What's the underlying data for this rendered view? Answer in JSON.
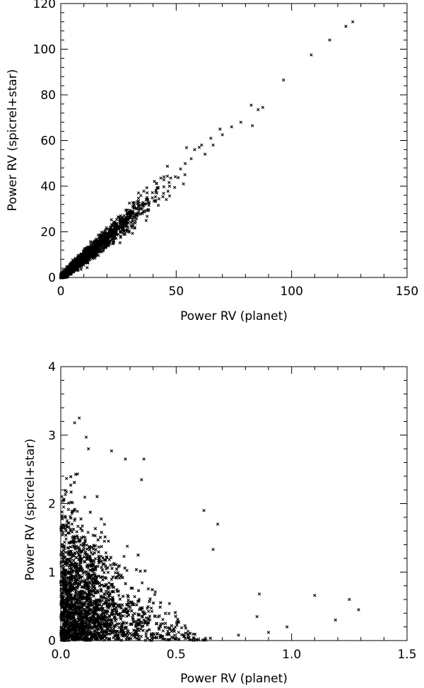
{
  "chart_data": [
    {
      "type": "scatter",
      "title": "",
      "xlabel": "Power RV (planet)",
      "ylabel": "Power RV (spicrel+star)",
      "xlim": [
        0,
        150
      ],
      "ylim": [
        0,
        120
      ],
      "xticks": [
        0,
        50,
        100,
        150
      ],
      "xtick_labels": [
        "0",
        "50",
        "100",
        "150"
      ],
      "yticks": [
        0,
        20,
        40,
        60,
        80,
        100,
        120
      ],
      "ytick_labels": [
        "0",
        "20",
        "40",
        "60",
        "80",
        "100",
        "120"
      ],
      "marker": "x",
      "color": "#000000",
      "grid": false,
      "description": "Dense cloud of points along approximately y = 0.87x, densest for x < 40, sparse outliers up to x ≈ 127",
      "outliers": [
        {
          "x": 126.5,
          "y": 112
        },
        {
          "x": 123.5,
          "y": 110
        },
        {
          "x": 116.5,
          "y": 104
        },
        {
          "x": 108.5,
          "y": 97.5
        },
        {
          "x": 96.5,
          "y": 86.5
        },
        {
          "x": 87.5,
          "y": 74.5
        },
        {
          "x": 85.5,
          "y": 73.5
        },
        {
          "x": 82.5,
          "y": 75.5
        },
        {
          "x": 83,
          "y": 66.5
        },
        {
          "x": 78,
          "y": 68
        },
        {
          "x": 74,
          "y": 66
        },
        {
          "x": 70,
          "y": 62.5
        },
        {
          "x": 69,
          "y": 65
        },
        {
          "x": 66,
          "y": 58
        },
        {
          "x": 65,
          "y": 61
        },
        {
          "x": 62.5,
          "y": 54
        },
        {
          "x": 61,
          "y": 58
        },
        {
          "x": 60,
          "y": 57
        },
        {
          "x": 58,
          "y": 56
        },
        {
          "x": 56.5,
          "y": 52
        }
      ]
    },
    {
      "type": "scatter",
      "title": "",
      "xlabel": "Power RV (planet)",
      "ylabel": "Power RV (spicrel+star)",
      "xlim": [
        0,
        1.5
      ],
      "ylim": [
        0,
        4
      ],
      "xticks": [
        0,
        0.5,
        1.0,
        1.5
      ],
      "xtick_labels": [
        "0.0",
        "0.5",
        "1.0",
        "1.5"
      ],
      "yticks": [
        0,
        1,
        2,
        3,
        4
      ],
      "ytick_labels": [
        "0",
        "1",
        "2",
        "3",
        "4"
      ],
      "marker": "x",
      "color": "#000000",
      "grid": false,
      "description": "Dense cloud concentrated near x < 0.3, y < 2.5, thinning out toward larger x; triangular envelope",
      "outliers": [
        {
          "x": 0.08,
          "y": 3.25
        },
        {
          "x": 0.06,
          "y": 3.18
        },
        {
          "x": 0.11,
          "y": 2.97
        },
        {
          "x": 0.12,
          "y": 2.8
        },
        {
          "x": 0.22,
          "y": 2.77
        },
        {
          "x": 0.28,
          "y": 2.65
        },
        {
          "x": 0.36,
          "y": 2.65
        },
        {
          "x": 0.35,
          "y": 2.35
        },
        {
          "x": 0.62,
          "y": 1.9
        },
        {
          "x": 0.68,
          "y": 1.7
        },
        {
          "x": 0.66,
          "y": 1.33
        },
        {
          "x": 0.86,
          "y": 0.68
        },
        {
          "x": 1.1,
          "y": 0.66
        },
        {
          "x": 1.25,
          "y": 0.6
        },
        {
          "x": 1.29,
          "y": 0.45
        },
        {
          "x": 1.19,
          "y": 0.3
        },
        {
          "x": 0.98,
          "y": 0.2
        },
        {
          "x": 0.9,
          "y": 0.12
        },
        {
          "x": 0.77,
          "y": 0.08
        },
        {
          "x": 0.85,
          "y": 0.35
        }
      ]
    }
  ]
}
